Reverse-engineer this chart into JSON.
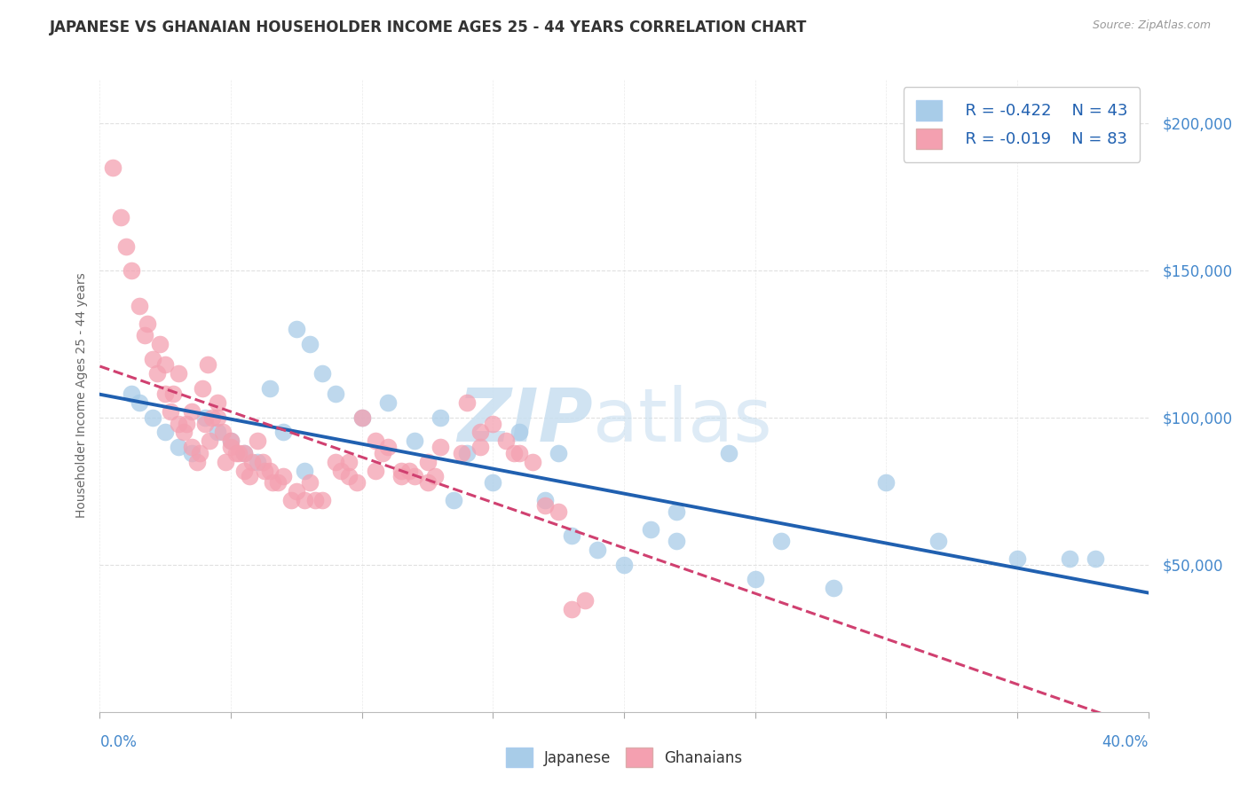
{
  "title": "JAPANESE VS GHANAIAN HOUSEHOLDER INCOME AGES 25 - 44 YEARS CORRELATION CHART",
  "source": "Source: ZipAtlas.com",
  "ylabel": "Householder Income Ages 25 - 44 years",
  "xlim": [
    0.0,
    40.0
  ],
  "ylim": [
    0,
    215000
  ],
  "yticks": [
    50000,
    100000,
    150000,
    200000
  ],
  "ytick_labels": [
    "$50,000",
    "$100,000",
    "$150,000",
    "$200,000"
  ],
  "legend_r_japanese": "R = -0.422",
  "legend_n_japanese": "N = 43",
  "legend_r_ghanaian": "R = -0.019",
  "legend_n_ghanaian": "N = 83",
  "japanese_color": "#a8cce8",
  "ghanaian_color": "#f4a0b0",
  "trendline_japanese_color": "#2060b0",
  "trendline_ghanaian_color": "#d04070",
  "background_color": "#ffffff",
  "grid_color": "#dddddd",
  "axis_label_color": "#4488cc",
  "title_color": "#333333",
  "source_color": "#999999",
  "japanese_x": [
    1.2,
    1.5,
    2.0,
    2.5,
    3.0,
    3.5,
    4.0,
    4.5,
    5.0,
    5.5,
    6.0,
    6.5,
    7.0,
    7.5,
    8.0,
    8.5,
    9.0,
    10.0,
    11.0,
    12.0,
    13.0,
    14.0,
    15.0,
    16.0,
    17.0,
    18.0,
    19.0,
    20.0,
    21.0,
    22.0,
    24.0,
    25.0,
    28.0,
    30.0,
    32.0,
    35.0,
    37.0,
    22.0,
    26.0,
    38.0,
    17.5,
    13.5,
    7.8
  ],
  "japanese_y": [
    108000,
    105000,
    100000,
    95000,
    90000,
    88000,
    100000,
    95000,
    92000,
    88000,
    85000,
    110000,
    95000,
    130000,
    125000,
    115000,
    108000,
    100000,
    105000,
    92000,
    100000,
    88000,
    78000,
    95000,
    72000,
    60000,
    55000,
    50000,
    62000,
    58000,
    88000,
    45000,
    42000,
    78000,
    58000,
    52000,
    52000,
    68000,
    58000,
    52000,
    88000,
    72000,
    82000
  ],
  "ghanaian_x": [
    0.5,
    0.8,
    1.0,
    1.2,
    1.5,
    1.7,
    2.0,
    2.2,
    2.5,
    2.7,
    3.0,
    3.2,
    3.5,
    3.7,
    3.9,
    4.1,
    4.3,
    4.5,
    4.7,
    5.0,
    5.2,
    5.5,
    5.8,
    6.0,
    6.3,
    6.6,
    7.0,
    7.5,
    8.0,
    8.5,
    9.0,
    9.5,
    10.0,
    10.5,
    11.0,
    11.5,
    12.0,
    12.5,
    13.0,
    14.0,
    14.5,
    15.0,
    16.0,
    17.0,
    18.0,
    2.3,
    2.8,
    3.3,
    3.8,
    4.2,
    4.8,
    5.3,
    5.7,
    6.2,
    6.8,
    7.3,
    8.2,
    9.2,
    9.8,
    10.8,
    11.8,
    12.8,
    13.8,
    15.5,
    16.5,
    17.5,
    1.8,
    2.5,
    3.0,
    3.5,
    4.0,
    4.5,
    5.0,
    5.5,
    6.5,
    7.8,
    9.5,
    10.5,
    11.5,
    12.5,
    14.5,
    15.8,
    18.5
  ],
  "ghanaian_y": [
    185000,
    168000,
    158000,
    150000,
    138000,
    128000,
    120000,
    115000,
    108000,
    102000,
    98000,
    95000,
    90000,
    85000,
    110000,
    118000,
    100000,
    105000,
    95000,
    90000,
    88000,
    82000,
    85000,
    92000,
    82000,
    78000,
    80000,
    75000,
    78000,
    72000,
    85000,
    80000,
    100000,
    92000,
    90000,
    82000,
    80000,
    85000,
    90000,
    105000,
    95000,
    98000,
    88000,
    70000,
    35000,
    125000,
    108000,
    98000,
    88000,
    92000,
    85000,
    88000,
    80000,
    85000,
    78000,
    72000,
    72000,
    82000,
    78000,
    88000,
    82000,
    80000,
    88000,
    92000,
    85000,
    68000,
    132000,
    118000,
    115000,
    102000,
    98000,
    100000,
    92000,
    88000,
    82000,
    72000,
    85000,
    82000,
    80000,
    78000,
    90000,
    88000,
    38000
  ]
}
